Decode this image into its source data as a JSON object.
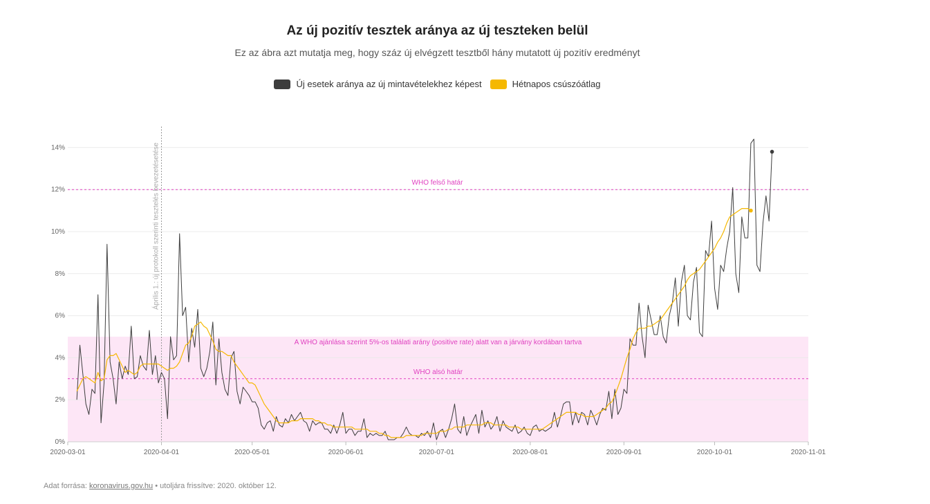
{
  "header": {
    "title": "Az új pozitív tesztek aránya az új teszteken belül",
    "subtitle": "Ez az ábra azt mutatja meg, hogy száz új elvégzett tesztből hány mutatott új pozitív eredményt"
  },
  "legend": {
    "series_daily": "Új esetek aránya az új mintavételekhez képest",
    "series_avg": "Hétnapos csúszóátlag"
  },
  "colors": {
    "daily": "#3d3d3d",
    "avg": "#f5b800",
    "band": "#fde6f6",
    "annotation": "#e040c0",
    "grid": "#ebebeb"
  },
  "footer": {
    "source_label": "Adat forrása:",
    "source_link": "koronavirus.gov.hu",
    "updated": "• utoljára frissítve: 2020. október 12."
  },
  "chart_data": {
    "type": "line",
    "x_start": "2020-03-04",
    "x_end": "2020-10-11",
    "xlim": [
      "2020-03-01",
      "2020-11-01"
    ],
    "ylim": [
      0,
      15
    ],
    "y_unit": "%",
    "yticks": [
      0,
      2,
      4,
      6,
      8,
      10,
      12,
      14
    ],
    "ytick_labels": [
      "0%",
      "2%",
      "4%",
      "6%",
      "8%",
      "10%",
      "12%",
      "14%"
    ],
    "xticks": [
      "2020-03-01",
      "2020-04-01",
      "2020-05-01",
      "2020-06-01",
      "2020-07-01",
      "2020-08-01",
      "2020-09-01",
      "2020-10-01",
      "2020-11-01"
    ],
    "xtick_labels": [
      "2020-03-01",
      "2020-04-01",
      "2020-05-01",
      "2020-06-01",
      "2020-07-01",
      "2020-08-01",
      "2020-09-01",
      "2020-10-01",
      "2020-11-01"
    ],
    "grid": true,
    "legend_position": "top-center",
    "series": [
      {
        "name": "Új esetek aránya az új mintavételekhez képest",
        "values": [
          2.0,
          4.6,
          3.2,
          1.8,
          1.3,
          2.5,
          2.3,
          7.0,
          0.9,
          2.8,
          9.4,
          3.8,
          3.0,
          1.8,
          3.8,
          3.0,
          3.6,
          3.2,
          5.5,
          3.0,
          3.1,
          4.1,
          3.6,
          3.4,
          5.3,
          3.2,
          4.1,
          2.8,
          3.3,
          3.0,
          1.1,
          5.0,
          3.9,
          4.1,
          9.9,
          6.0,
          6.4,
          3.8,
          5.4,
          4.5,
          6.3,
          3.5,
          3.1,
          3.5,
          4.3,
          5.7,
          2.7,
          4.9,
          3.3,
          2.5,
          2.2,
          4.0,
          4.3,
          2.4,
          1.8,
          2.6,
          2.4,
          2.2,
          1.9,
          1.9,
          1.6,
          0.8,
          0.6,
          0.9,
          1.0,
          0.5,
          1.2,
          0.8,
          0.7,
          1.1,
          0.9,
          1.3,
          1.0,
          1.2,
          1.4,
          1.0,
          0.9,
          0.5,
          1.0,
          0.8,
          0.9,
          0.9,
          0.6,
          0.6,
          0.4,
          0.8,
          0.4,
          0.8,
          1.4,
          0.4,
          0.6,
          0.6,
          0.3,
          0.5,
          0.5,
          1.1,
          0.2,
          0.4,
          0.3,
          0.4,
          0.3,
          0.3,
          0.5,
          0.1,
          0.1,
          0.1,
          0.2,
          0.2,
          0.4,
          0.7,
          0.4,
          0.3,
          0.3,
          0.2,
          0.4,
          0.3,
          0.5,
          0.2,
          0.9,
          0.1,
          0.5,
          0.6,
          0.2,
          0.6,
          1.1,
          1.8,
          0.6,
          0.4,
          1.2,
          0.3,
          0.7,
          1.0,
          1.3,
          0.4,
          1.5,
          0.7,
          1.0,
          0.6,
          0.8,
          1.2,
          0.5,
          1.0,
          0.7,
          0.6,
          0.5,
          0.8,
          0.4,
          0.5,
          0.7,
          0.4,
          0.3,
          0.7,
          0.8,
          0.5,
          0.6,
          0.5,
          0.6,
          0.7,
          1.4,
          0.7,
          1.2,
          1.8,
          1.9,
          1.9,
          0.8,
          1.4,
          0.9,
          1.4,
          1.3,
          0.8,
          1.5,
          1.2,
          0.8,
          1.3,
          1.6,
          1.5,
          2.4,
          1.1,
          2.5,
          1.3,
          1.6,
          2.5,
          2.3,
          4.9,
          4.6,
          4.6,
          6.6,
          5.0,
          4.0,
          6.5,
          5.8,
          5.1,
          5.1,
          6.0,
          5.0,
          4.7,
          6.0,
          6.6,
          7.8,
          5.5,
          7.6,
          8.4,
          6.0,
          5.8,
          7.6,
          8.3,
          5.2,
          5.0,
          9.1,
          8.8,
          10.5,
          7.3,
          6.3,
          8.4,
          8.1,
          9.2,
          10.0,
          12.1,
          8.0,
          7.1,
          10.7,
          9.7,
          9.7,
          14.2,
          14.4,
          8.4,
          8.1,
          10.4,
          11.7,
          10.5,
          13.8
        ]
      },
      {
        "name": "Hétnapos csúszóátlag",
        "values": [
          2.4,
          2.7,
          3.0,
          3.1,
          3.0,
          2.9,
          2.8,
          3.3,
          2.9,
          3.0,
          3.9,
          4.1,
          4.1,
          4.2,
          3.9,
          3.6,
          3.3,
          3.4,
          3.3,
          3.2,
          3.3,
          3.6,
          3.7,
          3.7,
          3.7,
          3.7,
          3.7,
          3.7,
          3.6,
          3.5,
          3.4,
          3.5,
          3.5,
          3.6,
          3.8,
          4.2,
          4.6,
          4.7,
          5.0,
          5.5,
          5.6,
          5.7,
          5.5,
          5.4,
          5.1,
          4.8,
          4.4,
          4.3,
          4.3,
          4.2,
          4.1,
          4.1,
          3.8,
          3.6,
          3.4,
          3.2,
          3.0,
          2.8,
          2.8,
          2.7,
          2.4,
          2.1,
          1.8,
          1.6,
          1.4,
          1.2,
          1.0,
          0.9,
          0.9,
          0.9,
          0.9,
          1.0,
          1.0,
          1.0,
          1.1,
          1.1,
          1.1,
          1.1,
          1.1,
          1.0,
          1.0,
          0.9,
          0.9,
          0.8,
          0.8,
          0.7,
          0.7,
          0.7,
          0.7,
          0.7,
          0.7,
          0.7,
          0.6,
          0.6,
          0.6,
          0.6,
          0.6,
          0.5,
          0.5,
          0.5,
          0.4,
          0.4,
          0.3,
          0.3,
          0.2,
          0.2,
          0.2,
          0.2,
          0.2,
          0.3,
          0.3,
          0.3,
          0.3,
          0.3,
          0.3,
          0.4,
          0.4,
          0.4,
          0.4,
          0.4,
          0.5,
          0.5,
          0.5,
          0.6,
          0.6,
          0.7,
          0.7,
          0.7,
          0.7,
          0.8,
          0.8,
          0.8,
          0.8,
          0.8,
          0.8,
          0.9,
          0.9,
          0.9,
          0.8,
          0.8,
          0.8,
          0.8,
          0.8,
          0.7,
          0.7,
          0.7,
          0.7,
          0.6,
          0.6,
          0.6,
          0.6,
          0.6,
          0.6,
          0.6,
          0.6,
          0.7,
          0.8,
          0.9,
          1.0,
          1.1,
          1.2,
          1.3,
          1.4,
          1.4,
          1.4,
          1.4,
          1.3,
          1.3,
          1.2,
          1.2,
          1.2,
          1.2,
          1.3,
          1.4,
          1.5,
          1.6,
          1.8,
          1.9,
          2.2,
          2.6,
          3.0,
          3.5,
          4.0,
          4.4,
          4.9,
          5.2,
          5.4,
          5.4,
          5.4,
          5.5,
          5.5,
          5.6,
          5.7,
          5.8,
          6.0,
          6.2,
          6.4,
          6.6,
          6.8,
          7.0,
          7.2,
          7.4,
          7.7,
          7.9,
          8.0,
          8.1,
          8.2,
          8.4,
          8.6,
          8.8,
          9.0,
          9.2,
          9.5,
          9.7,
          10.0,
          10.4,
          10.7,
          10.8,
          10.9,
          11.0,
          11.1,
          11.1,
          11.1,
          11.0
        ]
      }
    ],
    "annotations": {
      "who_upper_value": 12,
      "who_upper_label": "WHO felső határ",
      "who_lower_value": 3,
      "who_lower_label": "WHO alsó határ",
      "band_range": [
        0,
        5
      ],
      "band_label": "A WHO ajánlása szerint 5%-os találati arány (positive rate) alatt van a járvány kordában tartva",
      "protocol_date": "2020-04-01",
      "protocol_label": "Április 1.: új protokoll szerinti tesztelés bevezetésetése"
    }
  }
}
